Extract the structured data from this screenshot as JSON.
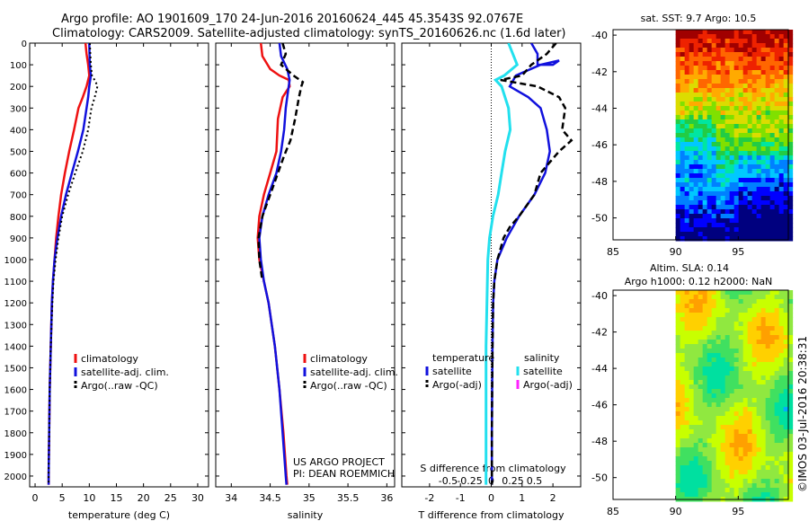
{
  "header": {
    "line1": "Argo profile: AO 1901609_170 24-Jun-2016 20160624_445 45.3543S 92.0767E",
    "line2": "Climatology: CARS2009. Satellite-adjusted climatology: synTS_20160626.nc (1.6d later)"
  },
  "colors": {
    "climatology": "#ee1111",
    "satellite": "#1111dd",
    "argo": "#000000",
    "satellite_s": "#22e0ee",
    "argo_s": "#ff22ff"
  },
  "chart_data": [
    {
      "type": "line",
      "id": "temperature",
      "xlabel": "temperature (deg C)",
      "xlim": [
        -1,
        32
      ],
      "xticks": [
        0,
        5,
        10,
        15,
        20,
        25,
        30
      ],
      "ylim": [
        2050,
        0
      ],
      "yticks": [
        0,
        100,
        200,
        300,
        400,
        500,
        600,
        700,
        800,
        900,
        1000,
        1100,
        1200,
        1300,
        1400,
        1500,
        1600,
        1700,
        1800,
        1900,
        2000
      ],
      "legend": [
        "climatology",
        "satellite-adj. clim.",
        "Argo(..raw -QC)"
      ],
      "series": [
        {
          "name": "climatology",
          "points": [
            [
              9.3,
              0
            ],
            [
              9.5,
              50
            ],
            [
              9.8,
              100
            ],
            [
              10.0,
              150
            ],
            [
              9.5,
              200
            ],
            [
              8.8,
              250
            ],
            [
              8.0,
              300
            ],
            [
              7.2,
              400
            ],
            [
              6.3,
              500
            ],
            [
              5.5,
              600
            ],
            [
              4.8,
              700
            ],
            [
              4.3,
              800
            ],
            [
              3.9,
              900
            ],
            [
              3.6,
              1000
            ],
            [
              3.3,
              1100
            ],
            [
              3.1,
              1200
            ],
            [
              2.9,
              1400
            ],
            [
              2.7,
              1600
            ],
            [
              2.6,
              1800
            ],
            [
              2.5,
              2000
            ],
            [
              2.5,
              2040
            ]
          ]
        },
        {
          "name": "satellite-adj. clim.",
          "points": [
            [
              10.0,
              0
            ],
            [
              10.1,
              100
            ],
            [
              10.3,
              150
            ],
            [
              10.0,
              200
            ],
            [
              9.8,
              250
            ],
            [
              9.5,
              300
            ],
            [
              8.9,
              400
            ],
            [
              7.9,
              500
            ],
            [
              6.8,
              600
            ],
            [
              5.7,
              700
            ],
            [
              4.8,
              800
            ],
            [
              4.1,
              900
            ],
            [
              3.6,
              1000
            ],
            [
              3.3,
              1100
            ],
            [
              3.1,
              1200
            ],
            [
              2.9,
              1400
            ],
            [
              2.7,
              1600
            ],
            [
              2.6,
              1800
            ],
            [
              2.5,
              2000
            ],
            [
              2.5,
              2040
            ]
          ]
        },
        {
          "name": "Argo(..raw -QC)",
          "points": [
            [
              10.1,
              0
            ],
            [
              10.3,
              100
            ],
            [
              10.5,
              150
            ],
            [
              11.2,
              180
            ],
            [
              11.5,
              200
            ],
            [
              11.0,
              250
            ],
            [
              10.4,
              300
            ],
            [
              9.8,
              400
            ],
            [
              8.8,
              500
            ],
            [
              7.4,
              600
            ],
            [
              6.1,
              700
            ],
            [
              5.0,
              800
            ],
            [
              4.3,
              900
            ],
            [
              3.8,
              1000
            ],
            [
              3.4,
              1100
            ],
            [
              3.2,
              1200
            ],
            [
              2.9,
              1400
            ],
            [
              2.7,
              1600
            ],
            [
              2.6,
              1800
            ],
            [
              2.5,
              2000
            ],
            [
              2.5,
              2040
            ]
          ]
        }
      ]
    },
    {
      "type": "line",
      "id": "salinity",
      "xlabel": "salinity",
      "xlim": [
        33.8,
        36.1
      ],
      "xticks": [
        34,
        34.5,
        35,
        35.5,
        36
      ],
      "ylim": [
        2050,
        0
      ],
      "legend": [
        "climatology",
        "satellite-adj. clim.",
        "Argo(..raw -QC)"
      ],
      "annotation": [
        "US ARGO PROJECT",
        "PI: DEAN ROEMMICH"
      ],
      "series": [
        {
          "name": "climatology",
          "points": [
            [
              34.38,
              0
            ],
            [
              34.4,
              60
            ],
            [
              34.5,
              120
            ],
            [
              34.62,
              150
            ],
            [
              34.74,
              170
            ],
            [
              34.75,
              200
            ],
            [
              34.66,
              250
            ],
            [
              34.6,
              350
            ],
            [
              34.58,
              500
            ],
            [
              34.5,
              600
            ],
            [
              34.42,
              700
            ],
            [
              34.36,
              800
            ],
            [
              34.34,
              900
            ],
            [
              34.36,
              1000
            ],
            [
              34.42,
              1100
            ],
            [
              34.48,
              1200
            ],
            [
              34.56,
              1400
            ],
            [
              34.62,
              1600
            ],
            [
              34.67,
              1800
            ],
            [
              34.71,
              2000
            ],
            [
              34.72,
              2040
            ]
          ]
        },
        {
          "name": "satellite-adj. clim.",
          "points": [
            [
              34.62,
              0
            ],
            [
              34.64,
              60
            ],
            [
              34.72,
              120
            ],
            [
              34.75,
              170
            ],
            [
              34.73,
              220
            ],
            [
              34.7,
              300
            ],
            [
              34.68,
              400
            ],
            [
              34.64,
              500
            ],
            [
              34.58,
              600
            ],
            [
              34.48,
              700
            ],
            [
              34.4,
              800
            ],
            [
              34.36,
              900
            ],
            [
              34.38,
              1000
            ],
            [
              34.42,
              1100
            ],
            [
              34.48,
              1200
            ],
            [
              34.56,
              1400
            ],
            [
              34.62,
              1600
            ],
            [
              34.66,
              1800
            ],
            [
              34.7,
              2000
            ],
            [
              34.71,
              2040
            ]
          ]
        },
        {
          "name": "Argo(..raw -QC)",
          "points": [
            [
              34.66,
              0
            ],
            [
              34.7,
              50
            ],
            [
              34.64,
              100
            ],
            [
              34.8,
              150
            ],
            [
              34.92,
              180
            ],
            [
              34.9,
              200
            ],
            [
              34.87,
              250
            ],
            [
              34.82,
              350
            ],
            [
              34.76,
              450
            ],
            [
              34.68,
              520
            ],
            [
              34.6,
              600
            ],
            [
              34.5,
              700
            ],
            [
              34.45,
              750
            ],
            [
              34.4,
              800
            ],
            [
              34.35,
              900
            ],
            [
              34.36,
              1000
            ],
            [
              34.4,
              1100
            ]
          ]
        }
      ]
    },
    {
      "type": "line",
      "id": "difference",
      "xlabel": "T difference from climatology",
      "xlim": [
        -2.9,
        2.9
      ],
      "xticks": [
        -2,
        -1,
        0,
        1,
        2
      ],
      "xlabel_top": "S difference from climatology",
      "sticks": [
        -0.5,
        -0.25,
        0,
        0.25,
        0.5
      ],
      "ylim": [
        2050,
        0
      ],
      "legend_titles": [
        "temperature",
        "salinity"
      ],
      "legend": [
        "satellite",
        "Argo(-adj)",
        "satellite",
        "Argo(-adj)"
      ],
      "series": [
        {
          "name": "temperature satellite",
          "points": [
            [
              1.3,
              0
            ],
            [
              1.5,
              50
            ],
            [
              1.5,
              100
            ],
            [
              2.0,
              100
            ],
            [
              2.2,
              80
            ],
            [
              1.6,
              100
            ],
            [
              0.8,
              150
            ],
            [
              0.6,
              200
            ],
            [
              1.2,
              250
            ],
            [
              1.6,
              300
            ],
            [
              1.8,
              400
            ],
            [
              1.9,
              500
            ],
            [
              1.75,
              600
            ],
            [
              1.4,
              700
            ],
            [
              0.9,
              800
            ],
            [
              0.5,
              900
            ],
            [
              0.2,
              1000
            ],
            [
              0.1,
              1100
            ],
            [
              0.06,
              1200
            ],
            [
              0.04,
              1400
            ],
            [
              0.03,
              1600
            ],
            [
              0.02,
              1800
            ],
            [
              0.02,
              2000
            ],
            [
              0.02,
              2040
            ]
          ]
        },
        {
          "name": "temperature Argo(-adj)",
          "points": [
            [
              2.1,
              0
            ],
            [
              1.8,
              50
            ],
            [
              1.3,
              100
            ],
            [
              1.0,
              150
            ],
            [
              0.3,
              170
            ],
            [
              1.5,
              200
            ],
            [
              2.2,
              250
            ],
            [
              2.4,
              300
            ],
            [
              2.3,
              400
            ],
            [
              2.6,
              450
            ],
            [
              2.2,
              500
            ],
            [
              1.9,
              550
            ],
            [
              1.6,
              600
            ],
            [
              1.4,
              700
            ],
            [
              0.9,
              800
            ],
            [
              0.6,
              850
            ],
            [
              0.4,
              900
            ],
            [
              0.2,
              1000
            ],
            [
              0.1,
              1100
            ],
            [
              0.06,
              1200
            ],
            [
              0.04,
              1400
            ],
            [
              0.03,
              1600
            ],
            [
              0.02,
              1800
            ],
            [
              0.02,
              2000
            ],
            [
              0.02,
              2040
            ]
          ]
        },
        {
          "name": "salinity satellite",
          "points": [
            [
              0.2,
              0
            ],
            [
              0.25,
              50
            ],
            [
              0.3,
              100
            ],
            [
              0.15,
              150
            ],
            [
              0.05,
              170
            ],
            [
              0.12,
              200
            ],
            [
              0.2,
              300
            ],
            [
              0.22,
              400
            ],
            [
              0.16,
              500
            ],
            [
              0.12,
              600
            ],
            [
              0.08,
              700
            ],
            [
              0.02,
              800
            ],
            [
              -0.02,
              900
            ],
            [
              -0.04,
              1000
            ],
            [
              -0.05,
              1200
            ],
            [
              -0.06,
              1400
            ],
            [
              -0.06,
              1600
            ],
            [
              -0.06,
              1800
            ],
            [
              -0.06,
              2000
            ],
            [
              -0.06,
              2040
            ]
          ]
        }
      ]
    },
    {
      "type": "heatmap",
      "id": "sst",
      "title": "sat. SST: 9.7 Argo: 10.5",
      "xlim": [
        85,
        99
      ],
      "xticks": [
        85,
        90,
        95
      ],
      "ylim": [
        -51.2,
        -39.7
      ],
      "yticks": [
        -40,
        -42,
        -44,
        -46,
        -48,
        -50
      ],
      "data_lon_start": 90,
      "rows_lat_north_to_south": [
        "rich red to orange (10-13 C)",
        "orange/yellow (9-11 C)",
        "green (7-9 C)",
        "cyan/blue (5-7 C)"
      ],
      "palette": [
        "#00007f",
        "#0000ff",
        "#0080ff",
        "#00c8ff",
        "#00e6a0",
        "#22cc44",
        "#80e000",
        "#dcdc00",
        "#ffaa00",
        "#ff6600",
        "#ee2200",
        "#a00000"
      ]
    },
    {
      "type": "heatmap",
      "id": "sla",
      "title_line1": "Altim. SLA: 0.14",
      "title_line2": "Argo h1000: 0.12 h2000: NaN",
      "xlim": [
        85,
        99
      ],
      "xticks": [
        85,
        90,
        95
      ],
      "ylim": [
        -51.2,
        -39.7
      ],
      "yticks": [
        -40,
        -42,
        -44,
        -46,
        -48,
        -50
      ],
      "data_lon_start": 90,
      "palette": [
        "#00b0ff",
        "#00e0a0",
        "#40e060",
        "#90e840",
        "#c8ff00",
        "#ffd000",
        "#ffa000",
        "#ff6000"
      ]
    }
  ],
  "timestamp": "©IMOS 03-Jul-2016 20:38:31"
}
